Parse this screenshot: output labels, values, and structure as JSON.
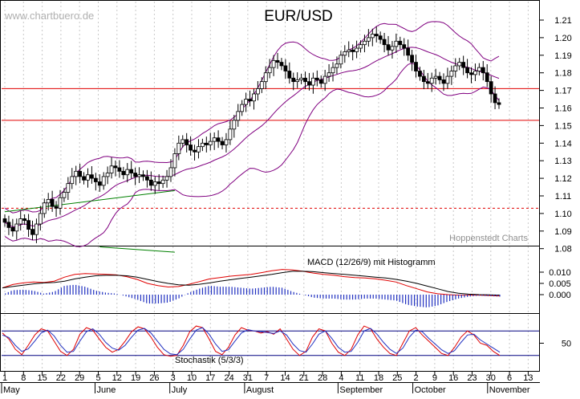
{
  "watermark": "www.chartbuero.de",
  "credit": "Hoppenstedt Charts",
  "chart_data": [
    {
      "type": "candlestick",
      "title": "EUR/USD",
      "ylim": [
        1.07,
        1.215
      ],
      "yticks": [
        "1.21",
        "1.20",
        "1.19",
        "1.18",
        "1.17",
        "1.16",
        "1.15",
        "1.14",
        "1.13",
        "1.12",
        "1.11",
        "1.10",
        "1.09",
        "1.08"
      ],
      "x_tick_labels": [
        "1",
        "8",
        "15",
        "22",
        "29",
        "5",
        "12",
        "19",
        "26",
        "3",
        "10",
        "17",
        "24",
        "31",
        "7",
        "14",
        "21",
        "28",
        "4",
        "11",
        "18",
        "25",
        "2",
        "9",
        "16",
        "23",
        "30",
        "6",
        "13"
      ],
      "month_labels": [
        "May",
        "June",
        "July",
        "August",
        "September",
        "October",
        "November"
      ],
      "horizontal_lines": [
        {
          "value": 1.171,
          "style": "solid"
        },
        {
          "value": 1.153,
          "style": "solid"
        },
        {
          "value": 1.103,
          "style": "dashed"
        }
      ],
      "close_series": {
        "name": "",
        "values": [
          1.095,
          1.092,
          1.09,
          1.094,
          1.097,
          1.096,
          1.091,
          1.088,
          1.094,
          1.1,
          1.106,
          1.108,
          1.104,
          1.103,
          1.109,
          1.112,
          1.117,
          1.121,
          1.124,
          1.121,
          1.119,
          1.122,
          1.12,
          1.118,
          1.116,
          1.121,
          1.123,
          1.127,
          1.126,
          1.124,
          1.122,
          1.125,
          1.123,
          1.121,
          1.122,
          1.121,
          1.119,
          1.116,
          1.118,
          1.117,
          1.119,
          1.121,
          1.126,
          1.134,
          1.14,
          1.142,
          1.139,
          1.136,
          1.135,
          1.138,
          1.14,
          1.139,
          1.141,
          1.143,
          1.141,
          1.139,
          1.142,
          1.148,
          1.153,
          1.158,
          1.162,
          1.165,
          1.164,
          1.168,
          1.171,
          1.175,
          1.18,
          1.183,
          1.187,
          1.186,
          1.184,
          1.181,
          1.177,
          1.175,
          1.176,
          1.177,
          1.175,
          1.173,
          1.177,
          1.176,
          1.174,
          1.178,
          1.18,
          1.183,
          1.185,
          1.19,
          1.192,
          1.193,
          1.192,
          1.194,
          1.196,
          1.198,
          1.2,
          1.202,
          1.201,
          1.199,
          1.196,
          1.193,
          1.195,
          1.198,
          1.196,
          1.194,
          1.19,
          1.186,
          1.181,
          1.178,
          1.175,
          1.174,
          1.177,
          1.178,
          1.176,
          1.174,
          1.178,
          1.181,
          1.184,
          1.186,
          1.183,
          1.18,
          1.179,
          1.181,
          1.183,
          1.18,
          1.175,
          1.168,
          1.163,
          1.162
        ]
      },
      "bollinger_bands": {
        "upper": "",
        "lower": ""
      },
      "trendlines": [
        {
          "from": [
            0,
            1.101
          ],
          "to": [
            43,
            1.113
          ],
          "color": "#008000"
        },
        {
          "from": [
            24,
            1.081
          ],
          "to": [
            43,
            1.078
          ],
          "color": "#008000"
        }
      ]
    },
    {
      "type": "line",
      "title": "MACD (12/26/9) mit Histogramm",
      "ylim": [
        -0.003,
        0.012
      ],
      "yticks": [
        "0.010",
        "0.005",
        "0.000"
      ],
      "series": [
        {
          "name": "",
          "values": [
            0.003,
            0.0045,
            0.0052,
            0.0056,
            0.0054,
            0.006,
            0.0078,
            0.009,
            0.0094,
            0.0092,
            0.009,
            0.0088,
            0.008,
            0.0068,
            0.005,
            0.004,
            0.0034,
            0.0036,
            0.0046,
            0.0058,
            0.007,
            0.0076,
            0.0082,
            0.0086,
            0.009,
            0.0098,
            0.0106,
            0.0112,
            0.011,
            0.0104,
            0.0096,
            0.009,
            0.0086,
            0.008,
            0.0076,
            0.0074,
            0.007,
            0.0064,
            0.0056,
            0.004,
            0.0026,
            0.0012,
            0.0004,
            0.0,
            -0.0002,
            -0.0002,
            -0.0002,
            -0.0004,
            -0.0006
          ]
        },
        {
          "name": "",
          "values": [
            0.003,
            0.0036,
            0.0042,
            0.0048,
            0.0052,
            0.0054,
            0.006,
            0.007,
            0.0078,
            0.0084,
            0.0086,
            0.0086,
            0.0084,
            0.0078,
            0.0068,
            0.0058,
            0.005,
            0.0044,
            0.0042,
            0.0046,
            0.0052,
            0.006,
            0.0066,
            0.0072,
            0.0078,
            0.0084,
            0.009,
            0.0098,
            0.0104,
            0.0104,
            0.0102,
            0.0098,
            0.0094,
            0.009,
            0.0086,
            0.0082,
            0.0078,
            0.0074,
            0.0068,
            0.006,
            0.005,
            0.0038,
            0.0026,
            0.0014,
            0.0006,
            0.0002,
            0.0,
            -0.0001,
            -0.0002
          ]
        }
      ]
    },
    {
      "type": "line",
      "title": "Stochastik (5/3/3)",
      "ylim": [
        0,
        100
      ],
      "yticks": [
        "50"
      ],
      "reference_lines": [
        80,
        20
      ],
      "series": [
        {
          "name": "",
          "values": [
            75,
            60,
            35,
            22,
            45,
            70,
            85,
            80,
            55,
            30,
            20,
            35,
            72,
            88,
            82,
            60,
            40,
            28,
            35,
            55,
            78,
            90,
            85,
            65,
            40,
            22,
            18,
            20,
            45,
            78,
            92,
            88,
            60,
            30,
            22,
            40,
            70,
            88,
            82,
            80,
            75,
            78,
            72,
            85,
            60,
            35,
            20,
            30,
            65,
            85,
            80,
            50,
            28,
            20,
            35,
            70,
            92,
            85,
            60,
            40,
            25,
            20,
            50,
            80,
            88,
            70,
            55,
            40,
            25,
            20,
            40,
            65,
            80,
            70,
            50,
            45,
            30,
            20
          ]
        },
        {
          "name": "",
          "values": [
            70,
            64,
            45,
            30,
            36,
            55,
            75,
            82,
            68,
            45,
            28,
            30,
            55,
            78,
            85,
            72,
            52,
            38,
            33,
            45,
            65,
            82,
            86,
            75,
            55,
            35,
            24,
            22,
            35,
            60,
            82,
            88,
            72,
            48,
            30,
            34,
            55,
            75,
            83,
            80,
            78,
            76,
            74,
            80,
            70,
            48,
            32,
            28,
            48,
            72,
            80,
            62,
            40,
            28,
            30,
            52,
            80,
            86,
            72,
            52,
            35,
            25,
            38,
            65,
            82,
            78,
            62,
            48,
            34,
            25,
            32,
            52,
            70,
            72,
            58,
            48,
            38,
            28
          ]
        }
      ]
    }
  ]
}
